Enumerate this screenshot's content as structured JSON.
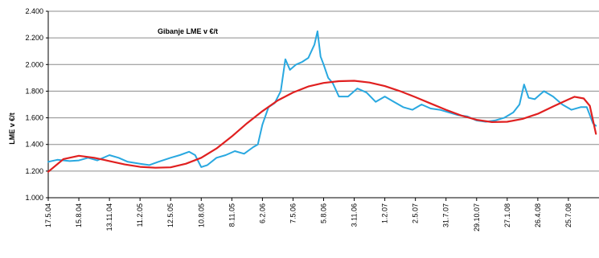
{
  "chart_data": {
    "type": "line",
    "title": "Gibanje LME v €/t",
    "xlabel": "",
    "ylabel": "LME v €/t",
    "ylim": [
      1000,
      2400
    ],
    "yticks": [
      "1.000",
      "1.200",
      "1.400",
      "1.600",
      "1.800",
      "2.000",
      "2.200",
      "2.400"
    ],
    "ytick_values": [
      1000,
      1200,
      1400,
      1600,
      1800,
      2000,
      2200,
      2400
    ],
    "grid": true,
    "legend": "none",
    "xticks": [
      "17.5.04",
      "15.8.04",
      "13.11.04",
      "11.2.05",
      "12.5.05",
      "10.8.05",
      "8.11.05",
      "6.2.06",
      "7.5.06",
      "5.8.06",
      "3.11.06",
      "1.2.07",
      "2.5.07",
      "31.7.07",
      "29.10.07",
      "27.1.08",
      "26.4.08",
      "25.7.08"
    ],
    "series": [
      {
        "color": "#29a8e0",
        "values": [
          [
            0,
            1270
          ],
          [
            0.3,
            1285
          ],
          [
            0.7,
            1275
          ],
          [
            1.0,
            1280
          ],
          [
            1.3,
            1300
          ],
          [
            1.6,
            1280
          ],
          [
            2.0,
            1320
          ],
          [
            2.3,
            1300
          ],
          [
            2.6,
            1270
          ],
          [
            3.0,
            1255
          ],
          [
            3.3,
            1245
          ],
          [
            3.6,
            1270
          ],
          [
            4.0,
            1300
          ],
          [
            4.3,
            1320
          ],
          [
            4.6,
            1345
          ],
          [
            4.8,
            1320
          ],
          [
            5.0,
            1230
          ],
          [
            5.2,
            1245
          ],
          [
            5.5,
            1300
          ],
          [
            5.8,
            1320
          ],
          [
            6.1,
            1350
          ],
          [
            6.4,
            1330
          ],
          [
            6.7,
            1380
          ],
          [
            6.85,
            1400
          ],
          [
            7.0,
            1550
          ],
          [
            7.2,
            1680
          ],
          [
            7.4,
            1710
          ],
          [
            7.6,
            1800
          ],
          [
            7.75,
            2040
          ],
          [
            7.9,
            1960
          ],
          [
            8.1,
            2000
          ],
          [
            8.3,
            2020
          ],
          [
            8.5,
            2050
          ],
          [
            8.7,
            2150
          ],
          [
            8.8,
            2250
          ],
          [
            8.9,
            2060
          ],
          [
            9.0,
            2000
          ],
          [
            9.15,
            1900
          ],
          [
            9.3,
            1860
          ],
          [
            9.5,
            1760
          ],
          [
            9.8,
            1760
          ],
          [
            10.1,
            1820
          ],
          [
            10.4,
            1790
          ],
          [
            10.7,
            1720
          ],
          [
            11.0,
            1760
          ],
          [
            11.3,
            1720
          ],
          [
            11.6,
            1680
          ],
          [
            11.9,
            1660
          ],
          [
            12.2,
            1700
          ],
          [
            12.5,
            1670
          ],
          [
            12.8,
            1660
          ],
          [
            13.1,
            1640
          ],
          [
            13.4,
            1620
          ],
          [
            13.7,
            1610
          ],
          [
            14.0,
            1580
          ],
          [
            14.3,
            1570
          ],
          [
            14.6,
            1580
          ],
          [
            14.9,
            1600
          ],
          [
            15.2,
            1640
          ],
          [
            15.4,
            1700
          ],
          [
            15.55,
            1850
          ],
          [
            15.7,
            1750
          ],
          [
            15.9,
            1740
          ],
          [
            16.2,
            1800
          ],
          [
            16.5,
            1760
          ],
          [
            16.8,
            1700
          ],
          [
            17.1,
            1660
          ],
          [
            17.4,
            1680
          ],
          [
            17.6,
            1680
          ],
          [
            17.8,
            1560
          ],
          [
            17.9,
            1540
          ]
        ]
      },
      {
        "color": "#e02020",
        "values": [
          [
            0,
            1195
          ],
          [
            0.5,
            1290
          ],
          [
            1.0,
            1315
          ],
          [
            1.5,
            1300
          ],
          [
            2.0,
            1275
          ],
          [
            2.5,
            1250
          ],
          [
            3.0,
            1232
          ],
          [
            3.5,
            1225
          ],
          [
            4.0,
            1228
          ],
          [
            4.5,
            1255
          ],
          [
            5.0,
            1300
          ],
          [
            5.5,
            1370
          ],
          [
            6.0,
            1460
          ],
          [
            6.5,
            1560
          ],
          [
            7.0,
            1650
          ],
          [
            7.5,
            1730
          ],
          [
            8.0,
            1790
          ],
          [
            8.5,
            1835
          ],
          [
            9.0,
            1862
          ],
          [
            9.5,
            1875
          ],
          [
            10.0,
            1878
          ],
          [
            10.5,
            1865
          ],
          [
            11.0,
            1838
          ],
          [
            11.5,
            1800
          ],
          [
            12.0,
            1755
          ],
          [
            12.5,
            1707
          ],
          [
            13.0,
            1660
          ],
          [
            13.5,
            1617
          ],
          [
            14.0,
            1585
          ],
          [
            14.5,
            1568
          ],
          [
            15.0,
            1570
          ],
          [
            15.5,
            1592
          ],
          [
            16.0,
            1630
          ],
          [
            16.5,
            1685
          ],
          [
            17.0,
            1738
          ],
          [
            17.2,
            1758
          ],
          [
            17.5,
            1745
          ],
          [
            17.7,
            1690
          ],
          [
            17.9,
            1480
          ]
        ]
      }
    ]
  }
}
